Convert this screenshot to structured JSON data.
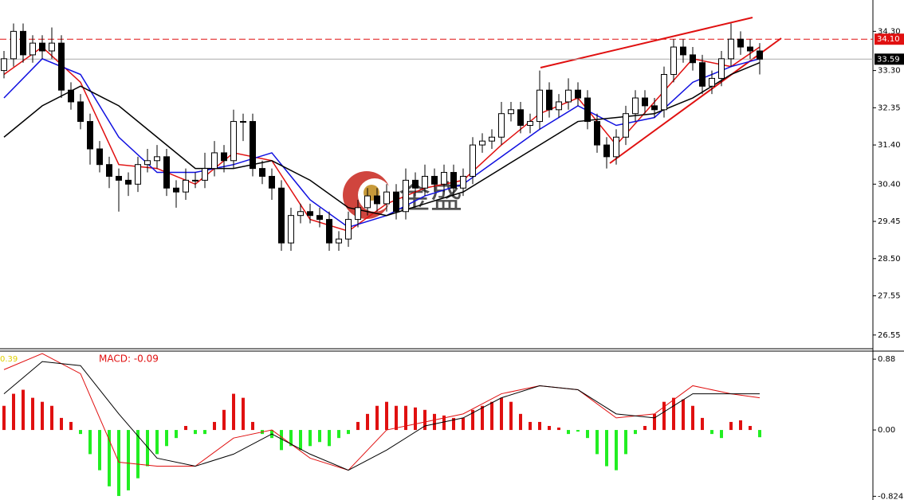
{
  "chart_data": [
    {
      "type": "candlestick",
      "candles": [
        [
          33.3,
          33.8,
          33.1,
          33.6
        ],
        [
          33.6,
          34.5,
          33.4,
          34.3
        ],
        [
          34.3,
          34.5,
          33.5,
          33.7
        ],
        [
          33.7,
          34.2,
          33.5,
          34.0
        ],
        [
          34.0,
          34.2,
          33.6,
          33.8
        ],
        [
          33.8,
          34.4,
          33.6,
          34.0
        ],
        [
          34.0,
          34.2,
          32.6,
          32.8
        ],
        [
          32.8,
          33.0,
          32.3,
          32.5
        ],
        [
          32.5,
          32.7,
          31.8,
          32.0
        ],
        [
          32.0,
          32.2,
          30.9,
          31.3
        ],
        [
          31.3,
          31.5,
          30.7,
          30.9
        ],
        [
          30.9,
          31.1,
          30.3,
          30.6
        ],
        [
          30.6,
          30.8,
          29.7,
          30.5
        ],
        [
          30.5,
          30.7,
          30.1,
          30.4
        ],
        [
          30.4,
          31.1,
          30.2,
          30.9
        ],
        [
          30.9,
          31.3,
          30.7,
          31.0
        ],
        [
          31.0,
          31.4,
          30.8,
          31.1
        ],
        [
          31.1,
          31.3,
          30.1,
          30.3
        ],
        [
          30.3,
          30.5,
          29.8,
          30.2
        ],
        [
          30.2,
          30.8,
          30.0,
          30.5
        ],
        [
          30.5,
          30.7,
          30.3,
          30.5
        ],
        [
          30.5,
          31.2,
          30.3,
          30.8
        ],
        [
          30.8,
          31.5,
          30.6,
          31.2
        ],
        [
          31.2,
          31.4,
          30.7,
          31.0
        ],
        [
          31.0,
          32.3,
          30.8,
          32.0
        ],
        [
          32.0,
          32.2,
          31.5,
          32.0
        ],
        [
          32.0,
          32.2,
          30.6,
          30.8
        ],
        [
          30.8,
          31.0,
          30.4,
          30.6
        ],
        [
          30.6,
          30.8,
          30.0,
          30.3
        ],
        [
          30.3,
          30.5,
          28.7,
          28.9
        ],
        [
          28.9,
          29.8,
          28.7,
          29.6
        ],
        [
          29.6,
          29.9,
          29.4,
          29.7
        ],
        [
          29.7,
          29.9,
          29.4,
          29.6
        ],
        [
          29.6,
          29.8,
          29.3,
          29.5
        ],
        [
          29.5,
          29.7,
          28.7,
          28.9
        ],
        [
          28.9,
          29.2,
          28.7,
          29.0
        ],
        [
          29.0,
          29.7,
          28.8,
          29.5
        ],
        [
          29.5,
          30.0,
          29.3,
          29.8
        ],
        [
          29.8,
          30.3,
          29.6,
          30.1
        ],
        [
          30.1,
          30.3,
          29.7,
          29.9
        ],
        [
          29.9,
          30.4,
          29.7,
          30.2
        ],
        [
          30.2,
          30.4,
          29.5,
          29.7
        ],
        [
          29.7,
          30.8,
          29.5,
          30.5
        ],
        [
          30.5,
          30.7,
          30.1,
          30.3
        ],
        [
          30.3,
          30.9,
          30.1,
          30.6
        ],
        [
          30.6,
          30.8,
          30.2,
          30.4
        ],
        [
          30.4,
          30.9,
          30.2,
          30.7
        ],
        [
          30.7,
          30.9,
          30.1,
          30.3
        ],
        [
          30.3,
          30.8,
          30.1,
          30.6
        ],
        [
          30.6,
          31.6,
          30.4,
          31.4
        ],
        [
          31.4,
          31.7,
          31.2,
          31.5
        ],
        [
          31.5,
          31.8,
          31.3,
          31.6
        ],
        [
          31.6,
          32.5,
          31.4,
          32.2
        ],
        [
          32.2,
          32.5,
          32.0,
          32.3
        ],
        [
          32.3,
          32.5,
          31.7,
          31.9
        ],
        [
          31.9,
          32.2,
          31.7,
          32.0
        ],
        [
          32.0,
          33.3,
          31.8,
          32.8
        ],
        [
          32.8,
          33.0,
          32.1,
          32.3
        ],
        [
          32.3,
          32.7,
          32.1,
          32.5
        ],
        [
          32.5,
          33.1,
          32.3,
          32.8
        ],
        [
          32.8,
          33.0,
          32.4,
          32.6
        ],
        [
          32.6,
          32.8,
          31.8,
          32.0
        ],
        [
          32.0,
          32.2,
          31.2,
          31.4
        ],
        [
          31.4,
          31.6,
          30.8,
          31.1
        ],
        [
          31.1,
          31.8,
          30.9,
          31.6
        ],
        [
          31.6,
          32.4,
          31.4,
          32.2
        ],
        [
          32.2,
          32.8,
          32.0,
          32.6
        ],
        [
          32.6,
          32.8,
          32.2,
          32.4
        ],
        [
          32.4,
          32.6,
          32.1,
          32.3
        ],
        [
          32.3,
          33.4,
          32.1,
          33.2
        ],
        [
          33.2,
          34.1,
          33.0,
          33.9
        ],
        [
          33.9,
          34.1,
          33.5,
          33.7
        ],
        [
          33.7,
          33.9,
          33.3,
          33.5
        ],
        [
          33.5,
          33.7,
          32.7,
          32.9
        ],
        [
          32.9,
          33.3,
          32.7,
          33.1
        ],
        [
          33.1,
          33.8,
          32.9,
          33.6
        ],
        [
          33.6,
          34.5,
          33.4,
          34.1
        ],
        [
          34.1,
          34.3,
          33.7,
          33.9
        ],
        [
          33.9,
          34.1,
          33.6,
          33.8
        ],
        [
          33.8,
          34.0,
          33.2,
          33.59
        ]
      ],
      "lines": [
        {
          "color": "#e01010",
          "x": [
            0,
            4,
            8,
            12,
            16,
            20,
            24,
            28,
            32,
            36,
            40,
            44,
            48,
            52,
            56,
            60,
            64,
            68,
            72,
            76,
            79
          ],
          "values": [
            33.2,
            33.9,
            33.0,
            30.9,
            30.8,
            30.4,
            31.2,
            31.0,
            29.5,
            29.2,
            29.9,
            30.3,
            30.5,
            31.4,
            32.2,
            32.6,
            31.4,
            32.5,
            33.6,
            33.4,
            33.9
          ]
        },
        {
          "color": "#1010e0",
          "x": [
            0,
            4,
            8,
            12,
            16,
            20,
            24,
            28,
            32,
            36,
            40,
            44,
            48,
            52,
            56,
            60,
            64,
            68,
            72,
            76,
            79
          ],
          "values": [
            32.6,
            33.6,
            33.2,
            31.6,
            30.7,
            30.7,
            30.9,
            31.2,
            30.0,
            29.3,
            29.6,
            30.1,
            30.4,
            31.1,
            31.8,
            32.4,
            31.9,
            32.1,
            33.0,
            33.4,
            33.6
          ]
        },
        {
          "color": "#000000",
          "x": [
            0,
            4,
            8,
            12,
            16,
            20,
            24,
            28,
            32,
            36,
            40,
            44,
            48,
            52,
            56,
            60,
            64,
            68,
            72,
            76,
            79
          ],
          "values": [
            31.6,
            32.4,
            32.9,
            32.4,
            31.6,
            30.8,
            30.8,
            31.0,
            30.5,
            29.8,
            29.6,
            29.9,
            30.2,
            30.8,
            31.4,
            32.0,
            32.1,
            32.2,
            32.6,
            33.2,
            33.5
          ]
        }
      ],
      "ylim": [
        26.2,
        35.1
      ],
      "yticks": [
        {
          "value": 34.3,
          "label": "34.30"
        },
        {
          "value": 33.3,
          "label": "33.30"
        },
        32.35,
        {
          "value": 31.4,
          "label": "31.40"
        },
        {
          "value": 30.4,
          "label": "30.40"
        },
        29.45,
        {
          "value": 28.5,
          "label": "28.50"
        },
        27.55,
        26.55
      ],
      "markers": [
        {
          "value": 34.1,
          "label": "34.10",
          "color": "#e01010"
        },
        {
          "value": 33.59,
          "label": "33.59",
          "color": "#000000"
        }
      ],
      "watermark": "金盛"
    },
    {
      "type": "macd",
      "indicator_label": "MACD: -0.09",
      "top_left_label": "0.39",
      "histogram": [
        0.3,
        0.45,
        0.5,
        0.4,
        0.35,
        0.3,
        0.15,
        0.1,
        -0.05,
        -0.3,
        -0.5,
        -0.7,
        -0.82,
        -0.75,
        -0.6,
        -0.45,
        -0.3,
        -0.2,
        -0.1,
        0.05,
        -0.05,
        -0.05,
        0.1,
        0.25,
        0.45,
        0.4,
        0.1,
        -0.05,
        -0.1,
        -0.25,
        -0.2,
        -0.25,
        -0.2,
        -0.15,
        -0.2,
        -0.1,
        -0.05,
        0.1,
        0.2,
        0.3,
        0.35,
        0.3,
        0.3,
        0.28,
        0.25,
        0.2,
        0.18,
        0.15,
        0.15,
        0.25,
        0.3,
        0.35,
        0.4,
        0.35,
        0.2,
        0.1,
        0.1,
        0.05,
        0.03,
        -0.05,
        -0.02,
        -0.1,
        -0.3,
        -0.45,
        -0.5,
        -0.3,
        -0.05,
        0.05,
        0.2,
        0.35,
        0.4,
        0.38,
        0.3,
        0.15,
        -0.05,
        -0.1,
        0.1,
        0.12,
        0.05,
        -0.09
      ],
      "up_color": "#e01010",
      "down_color": "#22ee22",
      "lines": [
        {
          "color": "#e01010",
          "x": [
            0,
            4,
            8,
            12,
            16,
            20,
            24,
            28,
            32,
            36,
            40,
            44,
            48,
            52,
            56,
            60,
            64,
            68,
            72,
            76,
            79
          ],
          "values": [
            0.75,
            0.95,
            0.7,
            -0.4,
            -0.45,
            -0.45,
            -0.1,
            0.0,
            -0.35,
            -0.5,
            0.0,
            0.1,
            0.2,
            0.45,
            0.55,
            0.5,
            0.15,
            0.2,
            0.55,
            0.45,
            0.4
          ]
        },
        {
          "color": "#000000",
          "x": [
            0,
            4,
            8,
            12,
            16,
            20,
            24,
            28,
            32,
            36,
            40,
            44,
            48,
            52,
            56,
            60,
            64,
            68,
            72,
            76,
            79
          ],
          "values": [
            0.45,
            0.85,
            0.8,
            0.2,
            -0.35,
            -0.45,
            -0.3,
            -0.05,
            -0.3,
            -0.5,
            -0.25,
            0.05,
            0.15,
            0.4,
            0.55,
            0.5,
            0.2,
            0.15,
            0.45,
            0.45,
            0.45
          ]
        }
      ],
      "ylim": [
        -0.87,
        0.98
      ],
      "yticks": [
        0.88,
        {
          "value": 0,
          "label": "0.00"
        },
        -0.824
      ]
    }
  ]
}
